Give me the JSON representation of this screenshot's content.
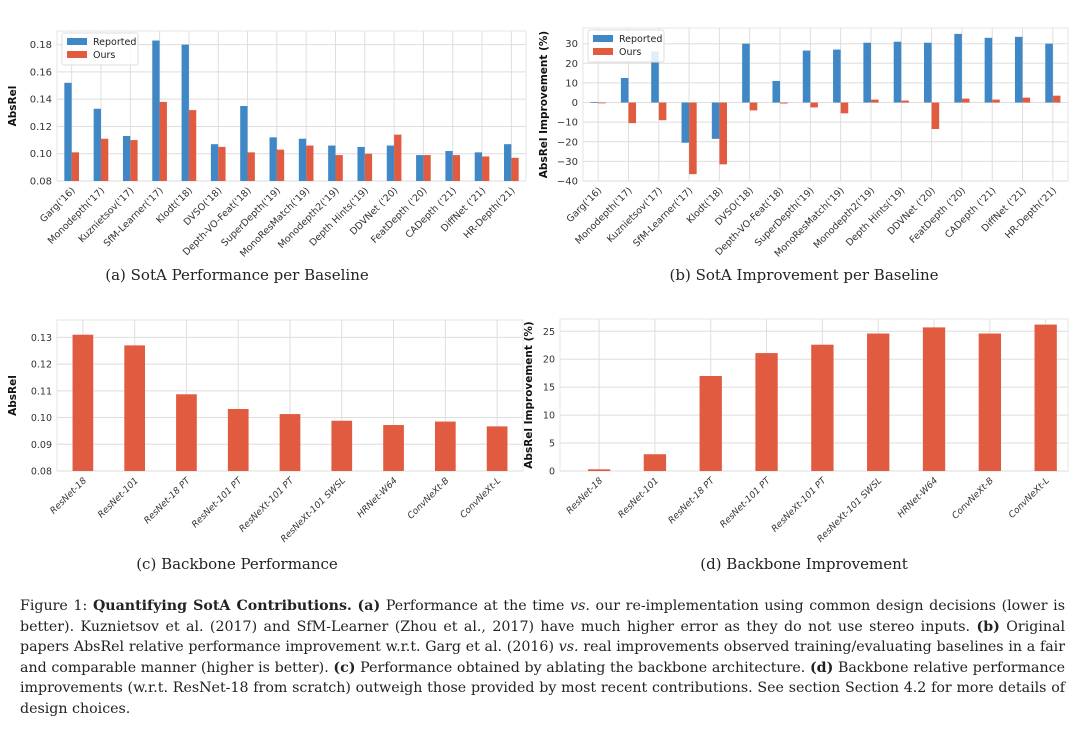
{
  "colors": {
    "reported": "#3f88c5",
    "ours": "#e15b40",
    "grid": "#dedede"
  },
  "chart_data": [
    {
      "id": "a",
      "type": "bar",
      "title": "(a) SotA Performance per Baseline",
      "xlabel": "",
      "ylabel": "AbsRel",
      "ylim": [
        0.08,
        0.19
      ],
      "yticks": [
        0.08,
        0.1,
        0.12,
        0.14,
        0.16,
        0.18
      ],
      "ytick_labels": [
        "0.08",
        "0.10",
        "0.12",
        "0.14",
        "0.16",
        "0.18"
      ],
      "grid": true,
      "legend": "top-left",
      "categories": [
        "Garg('16)",
        "Monodepth('17)",
        "Kuznietsov('17)",
        "SfM-Learner('17)",
        "Klodt('18)",
        "DVSO('18)",
        "Depth-VO-Feat('18)",
        "SuperDepth('19)",
        "MonoResMatch('19)",
        "Monodepth2('19)",
        "Depth Hints('19)",
        "DDVNet ('20)",
        "FeatDepth ('20)",
        "CADepth ('21)",
        "DiffNet ('21)",
        "HR-Depth('21)"
      ],
      "series": [
        {
          "name": "Reported",
          "color": "reported",
          "values": [
            0.152,
            0.133,
            0.113,
            0.183,
            0.18,
            0.107,
            0.135,
            0.112,
            0.111,
            0.106,
            0.105,
            0.106,
            0.099,
            0.102,
            0.101,
            0.107
          ]
        },
        {
          "name": "Ours",
          "color": "ours",
          "values": [
            0.101,
            0.111,
            0.11,
            0.138,
            0.132,
            0.105,
            0.101,
            0.103,
            0.106,
            0.099,
            0.1,
            0.114,
            0.099,
            0.099,
            0.098,
            0.097
          ]
        }
      ]
    },
    {
      "id": "b",
      "type": "bar",
      "title": "(b) SotA Improvement per Baseline",
      "xlabel": "",
      "ylabel": "AbsRel Improvement (%)",
      "ylim": [
        -40,
        38
      ],
      "yticks": [
        -40,
        -30,
        -20,
        -10,
        0,
        10,
        20,
        30
      ],
      "ytick_labels": [
        "−40",
        "−30",
        "−20",
        "−10",
        "0",
        "10",
        "20",
        "30"
      ],
      "grid": true,
      "legend": "top-left",
      "categories": [
        "Garg('16)",
        "Monodepth('17)",
        "Kuznietsov('17)",
        "SfM-Learner('17)",
        "Klodt('18)",
        "DVSO('18)",
        "Depth-VO-Feat('18)",
        "SuperDepth('19)",
        "MonoResMatch('19)",
        "Monodepth2('19)",
        "Depth Hints('19)",
        "DDVNet ('20)",
        "FeatDepth ('20)",
        "CADepth ('21)",
        "DiffNet ('21)",
        "HR-Depth('21)"
      ],
      "series": [
        {
          "name": "Reported",
          "color": "reported",
          "values": [
            0.3,
            12.5,
            26,
            -20.5,
            -18.5,
            30,
            11,
            26.5,
            27,
            30.5,
            31,
            30.5,
            35,
            33,
            33.5,
            30
          ]
        },
        {
          "name": "Ours",
          "color": "ours",
          "values": [
            0,
            -10.5,
            -9,
            -36.5,
            -31.5,
            -4,
            -0.5,
            -2.5,
            -5.5,
            1.5,
            1,
            -13.5,
            2,
            1.5,
            2.5,
            3.5
          ]
        }
      ]
    },
    {
      "id": "c",
      "type": "bar",
      "title": "(c) Backbone Performance",
      "xlabel": "",
      "ylabel": "AbsRel",
      "ylim": [
        0.08,
        0.1365
      ],
      "yticks": [
        0.08,
        0.09,
        0.1,
        0.11,
        0.12,
        0.13
      ],
      "ytick_labels": [
        "0.08",
        "0.09",
        "0.10",
        "0.11",
        "0.12",
        "0.13"
      ],
      "grid": true,
      "legend": "none",
      "categories": [
        "ResNet-18",
        "ResNet-101",
        "ResNet-18 PT",
        "ResNet-101 PT",
        "ResNeXt-101 PT",
        "ResNeXt-101 SWSL",
        "HRNet-W64",
        "ConvNeXt-B",
        "ConvNeXt-L"
      ],
      "series": [
        {
          "name": "Ours",
          "color": "ours",
          "values": [
            0.131,
            0.127,
            0.1087,
            0.1032,
            0.1013,
            0.0988,
            0.0972,
            0.0985,
            0.0967
          ]
        }
      ]
    },
    {
      "id": "d",
      "type": "bar",
      "title": "(d) Backbone Improvement",
      "xlabel": "",
      "ylabel": "AbsRel Improvement (%)",
      "ylim": [
        0,
        27.2
      ],
      "yticks": [
        0,
        5,
        10,
        15,
        20,
        25
      ],
      "ytick_labels": [
        "0",
        "5",
        "10",
        "15",
        "20",
        "25"
      ],
      "grid": true,
      "legend": "none",
      "categories": [
        "ResNet-18",
        "ResNet-101",
        "ResNet-18 PT",
        "ResNet-101 PT",
        "ResNeXt-101 PT",
        "ResNeXt-101 SWSL",
        "HRNet-W64",
        "ConvNeXt-B",
        "ConvNeXt-L"
      ],
      "series": [
        {
          "name": "Ours",
          "color": "ours",
          "values": [
            0.3,
            3.0,
            17.0,
            21.1,
            22.6,
            24.6,
            25.7,
            24.6,
            26.2
          ]
        }
      ]
    }
  ],
  "caption": [
    {
      "t": "Figure 1: ",
      "s": ""
    },
    {
      "t": "Quantifying SotA Contributions.",
      "s": "b"
    },
    {
      "t": " ",
      "s": ""
    },
    {
      "t": "(a)",
      "s": "b"
    },
    {
      "t": " Performance at the time ",
      "s": ""
    },
    {
      "t": "vs.",
      "s": "i"
    },
    {
      "t": " our re-implementation using common design decisions (lower is better). Kuznietsov et al. (2017) and SfM-Learner (Zhou et al., 2017) have much higher error as they do not use stereo inputs. ",
      "s": ""
    },
    {
      "t": "(b)",
      "s": "b"
    },
    {
      "t": " Original papers AbsRel relative performance improvement w.r.t. Garg et al. (2016) ",
      "s": ""
    },
    {
      "t": "vs.",
      "s": "i"
    },
    {
      "t": " real improvements observed training/evaluating baselines in a fair and comparable manner (higher is better). ",
      "s": ""
    },
    {
      "t": "(c)",
      "s": "b"
    },
    {
      "t": " Performance obtained by ablating the backbone architecture. ",
      "s": ""
    },
    {
      "t": "(d)",
      "s": "b"
    },
    {
      "t": " Backbone relative performance improvements (w.r.t. ResNet-18 from scratch) outweigh those provided by most recent contributions. See section Section 4.2 for more details of design choices.",
      "s": ""
    }
  ]
}
